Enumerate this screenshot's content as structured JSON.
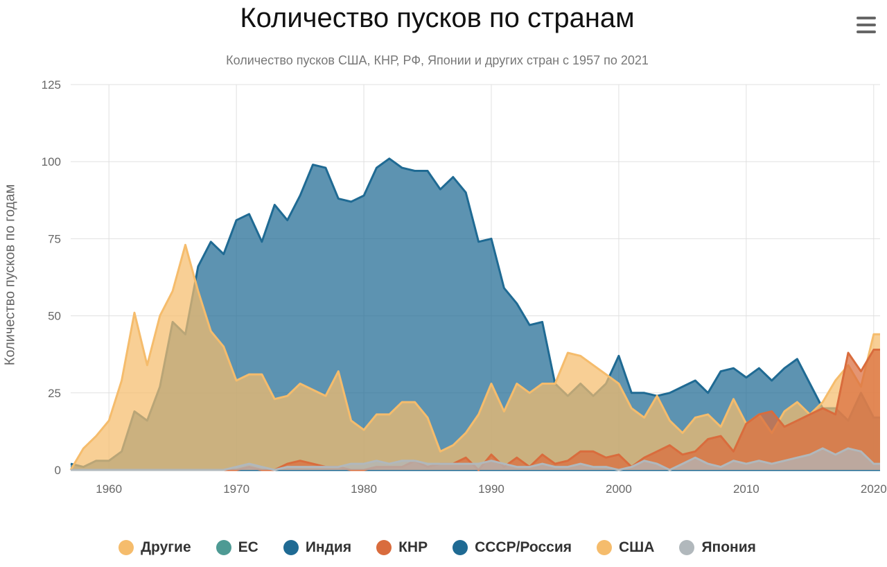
{
  "title": "Количество пусков по странам",
  "subtitle": "Количество пусков США, КНР, РФ, Японии и других стран с 1957 по 2021",
  "menu_icon": "hamburger-menu-icon",
  "chart_data": {
    "type": "area",
    "title": "Количество пусков по странам",
    "subtitle": "Количество пусков США, КНР, РФ, Японии и других стран с 1957 по 2021",
    "xlabel": "",
    "ylabel": "Количество пусков по годам",
    "xlim": [
      1957,
      2020.5
    ],
    "ylim": [
      0,
      125
    ],
    "xticks": [
      "1960",
      "1970",
      "1980",
      "1990",
      "2000",
      "2010",
      "2020"
    ],
    "yticks": [
      "0",
      "25",
      "50",
      "75",
      "100",
      "125"
    ],
    "grid": true,
    "stacked": false,
    "legend_position": "bottom",
    "x": [
      1957,
      1958,
      1959,
      1960,
      1961,
      1962,
      1963,
      1964,
      1965,
      1966,
      1967,
      1968,
      1969,
      1970,
      1971,
      1972,
      1973,
      1974,
      1975,
      1976,
      1977,
      1978,
      1979,
      1980,
      1981,
      1982,
      1983,
      1984,
      1985,
      1986,
      1987,
      1988,
      1989,
      1990,
      1991,
      1992,
      1993,
      1994,
      1995,
      1996,
      1997,
      1998,
      1999,
      2000,
      2001,
      2002,
      2003,
      2004,
      2005,
      2006,
      2007,
      2008,
      2009,
      2010,
      2011,
      2012,
      2013,
      2014,
      2015,
      2016,
      2017,
      2018,
      2019,
      2020,
      2020.5
    ],
    "series": [
      {
        "name": "Другие",
        "color": "#f5bc6c",
        "values": [
          0,
          0,
          0,
          0,
          0,
          0,
          0,
          0,
          0,
          0,
          0,
          0,
          0,
          0,
          0,
          0,
          0,
          0,
          0,
          0,
          0,
          0,
          0,
          0,
          0,
          0,
          0,
          0,
          0,
          0,
          0,
          0,
          0,
          0,
          0,
          0,
          0,
          0,
          0,
          0,
          0,
          0,
          0,
          0,
          0,
          0,
          0,
          0,
          0,
          0,
          0,
          0,
          0,
          0,
          0,
          0,
          0,
          0,
          0,
          0,
          0,
          0,
          0,
          0,
          0
        ]
      },
      {
        "name": "ЕС",
        "color": "#4e9a94",
        "values": [
          0,
          0,
          0,
          0,
          0,
          0,
          0,
          0,
          0,
          0,
          0,
          0,
          0,
          0,
          0,
          0,
          0,
          0,
          0,
          0,
          0,
          0,
          0,
          0,
          0,
          0,
          0,
          0,
          0,
          0,
          0,
          0,
          0,
          0,
          0,
          0,
          0,
          0,
          0,
          0,
          0,
          0,
          0,
          0,
          0,
          0,
          0,
          0,
          0,
          0,
          0,
          0,
          0,
          0,
          0,
          0,
          0,
          0,
          0,
          0,
          0,
          0,
          0,
          0,
          0
        ]
      },
      {
        "name": "Индия",
        "color": "#1f6a93",
        "values": [
          0,
          0,
          0,
          0,
          0,
          0,
          0,
          0,
          0,
          0,
          0,
          0,
          0,
          0,
          0,
          0,
          0,
          0,
          0,
          0,
          0,
          0,
          0,
          0,
          0,
          0,
          0,
          0,
          0,
          0,
          0,
          0,
          0,
          0,
          0,
          0,
          0,
          0,
          0,
          0,
          0,
          0,
          0,
          0,
          0,
          0,
          0,
          0,
          0,
          0,
          0,
          0,
          0,
          0,
          0,
          0,
          0,
          0,
          0,
          0,
          0,
          0,
          0,
          0,
          0
        ]
      },
      {
        "name": "КНР",
        "color": "#d96c3d",
        "values": [
          0,
          0,
          0,
          0,
          0,
          0,
          0,
          0,
          0,
          0,
          0,
          0,
          0,
          0,
          1,
          0,
          0,
          2,
          3,
          2,
          1,
          1,
          0,
          0,
          1,
          1,
          1,
          3,
          1,
          2,
          2,
          4,
          0,
          5,
          1,
          4,
          1,
          5,
          2,
          3,
          6,
          6,
          4,
          5,
          1,
          4,
          6,
          8,
          5,
          6,
          10,
          11,
          6,
          15,
          18,
          19,
          14,
          16,
          18,
          20,
          18,
          38,
          32,
          39,
          39
        ]
      },
      {
        "name": "СССР/Россия",
        "color": "#1f6a93",
        "values": [
          2,
          1,
          3,
          3,
          6,
          19,
          16,
          27,
          48,
          44,
          66,
          74,
          70,
          81,
          83,
          74,
          86,
          81,
          89,
          99,
          98,
          88,
          87,
          89,
          98,
          101,
          98,
          97,
          97,
          91,
          95,
          90,
          74,
          75,
          59,
          54,
          47,
          48,
          28,
          24,
          28,
          24,
          28,
          37,
          25,
          25,
          24,
          25,
          27,
          29,
          25,
          32,
          33,
          30,
          33,
          29,
          33,
          36,
          28,
          20,
          20,
          16,
          25,
          17,
          17
        ]
      },
      {
        "name": "США",
        "color": "#f5bc6c",
        "values": [
          0,
          7,
          11,
          16,
          29,
          51,
          34,
          50,
          58,
          73,
          58,
          45,
          40,
          29,
          31,
          31,
          23,
          24,
          28,
          26,
          24,
          32,
          16,
          13,
          18,
          18,
          22,
          22,
          17,
          6,
          8,
          12,
          18,
          28,
          19,
          28,
          25,
          28,
          28,
          38,
          37,
          34,
          31,
          28,
          20,
          17,
          24,
          16,
          12,
          17,
          18,
          14,
          23,
          15,
          18,
          12,
          19,
          22,
          18,
          22,
          29,
          34,
          27,
          44,
          44
        ]
      },
      {
        "name": "Япония",
        "color": "#b1b8bc",
        "values": [
          0,
          0,
          0,
          0,
          0,
          0,
          0,
          0,
          0,
          0,
          0,
          0,
          0,
          1,
          2,
          1,
          0,
          1,
          1,
          1,
          1,
          1,
          2,
          2,
          3,
          2,
          3,
          3,
          2,
          2,
          2,
          2,
          2,
          3,
          2,
          1,
          1,
          2,
          1,
          1,
          2,
          1,
          1,
          0,
          1,
          3,
          2,
          0,
          2,
          4,
          2,
          1,
          3,
          2,
          3,
          2,
          3,
          4,
          5,
          7,
          5,
          7,
          6,
          2,
          2
        ]
      }
    ]
  },
  "legend": [
    {
      "label": "Другие",
      "color": "#f5bc6c",
      "icon": "legend-dot-icon"
    },
    {
      "label": "ЕС",
      "color": "#4e9a94",
      "icon": "legend-dot-icon"
    },
    {
      "label": "Индия",
      "color": "#1f6a93",
      "icon": "legend-dot-icon"
    },
    {
      "label": "КНР",
      "color": "#d96c3d",
      "icon": "legend-dot-icon"
    },
    {
      "label": "СССР/Россия",
      "color": "#1f6a93",
      "icon": "legend-dot-icon"
    },
    {
      "label": "США",
      "color": "#f5bc6c",
      "icon": "legend-dot-icon"
    },
    {
      "label": "Япония",
      "color": "#b1b8bc",
      "icon": "legend-dot-icon"
    }
  ]
}
